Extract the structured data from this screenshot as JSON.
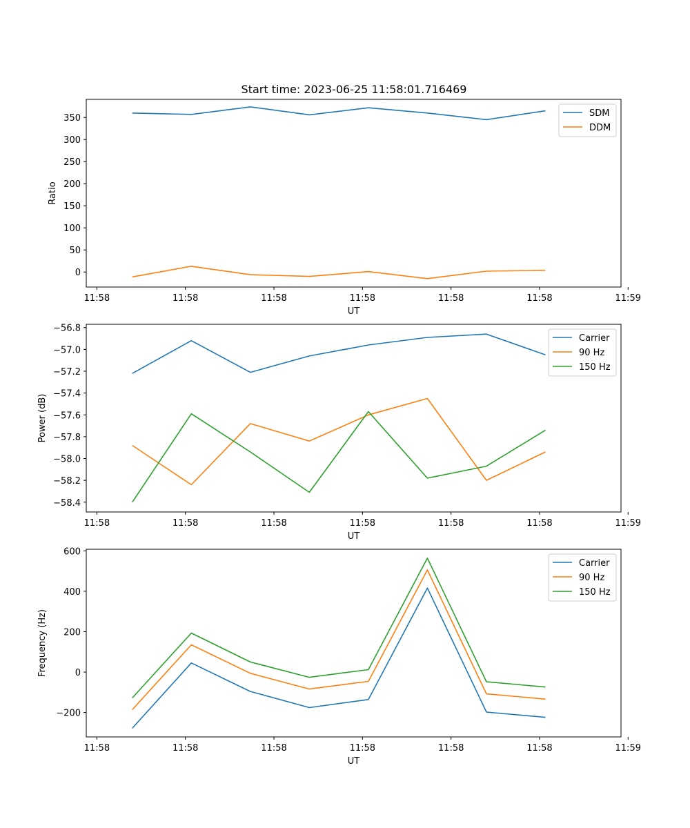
{
  "figure": {
    "title": "Start time: 2023-06-25 11:58:01.716469"
  },
  "chart_data": [
    {
      "type": "line",
      "xlabel": "UT",
      "ylabel": "Ratio",
      "x": [
        0,
        1,
        2,
        3,
        4,
        5,
        6,
        7
      ],
      "xlim": [
        -0.78,
        8.28
      ],
      "xticks": [
        -0.6,
        0.9,
        2.4,
        3.9,
        5.4,
        6.9,
        8.4
      ],
      "xticklabels": [
        "11:58",
        "11:58",
        "11:58",
        "11:58",
        "11:58",
        "11:58",
        "11:59"
      ],
      "ylim": [
        -34,
        391
      ],
      "yticks": [
        0,
        50,
        100,
        150,
        200,
        250,
        300,
        350
      ],
      "legend": "top-right",
      "series": [
        {
          "name": "SDM",
          "color": "#1f77b4",
          "values": [
            360,
            357,
            374,
            356,
            372,
            360,
            345,
            365
          ]
        },
        {
          "name": "DDM",
          "color": "#ff7f0e",
          "values": [
            -11,
            13,
            -6,
            -10,
            1,
            -15,
            2,
            4
          ]
        }
      ]
    },
    {
      "type": "line",
      "xlabel": "UT",
      "ylabel": "Power (dB)",
      "x": [
        0,
        1,
        2,
        3,
        4,
        5,
        6,
        7
      ],
      "xlim": [
        -0.78,
        8.28
      ],
      "xticks": [
        -0.6,
        0.9,
        2.4,
        3.9,
        5.4,
        6.9,
        8.4
      ],
      "xticklabels": [
        "11:58",
        "11:58",
        "11:58",
        "11:58",
        "11:58",
        "11:58",
        "11:59"
      ],
      "ylim": [
        -58.49,
        -56.77
      ],
      "yticks": [
        -58.4,
        -58.2,
        -58.0,
        -57.8,
        -57.6,
        -57.4,
        -57.2,
        -57.0,
        -56.8
      ],
      "yticklabels": [
        "−58.4",
        "−58.2",
        "−58.0",
        "−57.8",
        "−57.6",
        "−57.4",
        "−57.2",
        "−57.0",
        "−56.8"
      ],
      "legend": "top-right",
      "series": [
        {
          "name": "Carrier",
          "color": "#1f77b4",
          "values": [
            -57.22,
            -56.92,
            -57.21,
            -57.06,
            -56.96,
            -56.89,
            -56.86,
            -57.05
          ]
        },
        {
          "name": "90 Hz",
          "color": "#ff7f0e",
          "values": [
            -57.88,
            -58.24,
            -57.68,
            -57.84,
            -57.6,
            -57.45,
            -58.2,
            -57.94
          ]
        },
        {
          "name": "150 Hz",
          "color": "#2ca02c",
          "values": [
            -58.4,
            -57.59,
            -57.94,
            -58.31,
            -57.57,
            -58.18,
            -58.07,
            -57.74
          ]
        }
      ]
    },
    {
      "type": "line",
      "xlabel": "UT",
      "ylabel": "Frequency (Hz)",
      "x": [
        0,
        1,
        2,
        3,
        4,
        5,
        6,
        7
      ],
      "xlim": [
        -0.78,
        8.28
      ],
      "xticks": [
        -0.6,
        0.9,
        2.4,
        3.9,
        5.4,
        6.9,
        8.4
      ],
      "xticklabels": [
        "11:58",
        "11:58",
        "11:58",
        "11:58",
        "11:58",
        "11:58",
        "11:59"
      ],
      "ylim": [
        -321,
        608
      ],
      "yticks": [
        -200,
        0,
        200,
        400,
        600
      ],
      "yticklabels": [
        "−200",
        "0",
        "200",
        "400",
        "600"
      ],
      "legend": "top-right",
      "series": [
        {
          "name": "Carrier",
          "color": "#1f77b4",
          "values": [
            -278,
            45,
            -96,
            -176,
            -136,
            416,
            -198,
            -224
          ]
        },
        {
          "name": "90 Hz",
          "color": "#ff7f0e",
          "values": [
            -186,
            135,
            -6,
            -84,
            -46,
            506,
            -108,
            -134
          ]
        },
        {
          "name": "150 Hz",
          "color": "#2ca02c",
          "values": [
            -128,
            193,
            50,
            -26,
            12,
            564,
            -48,
            -74
          ]
        }
      ]
    }
  ]
}
